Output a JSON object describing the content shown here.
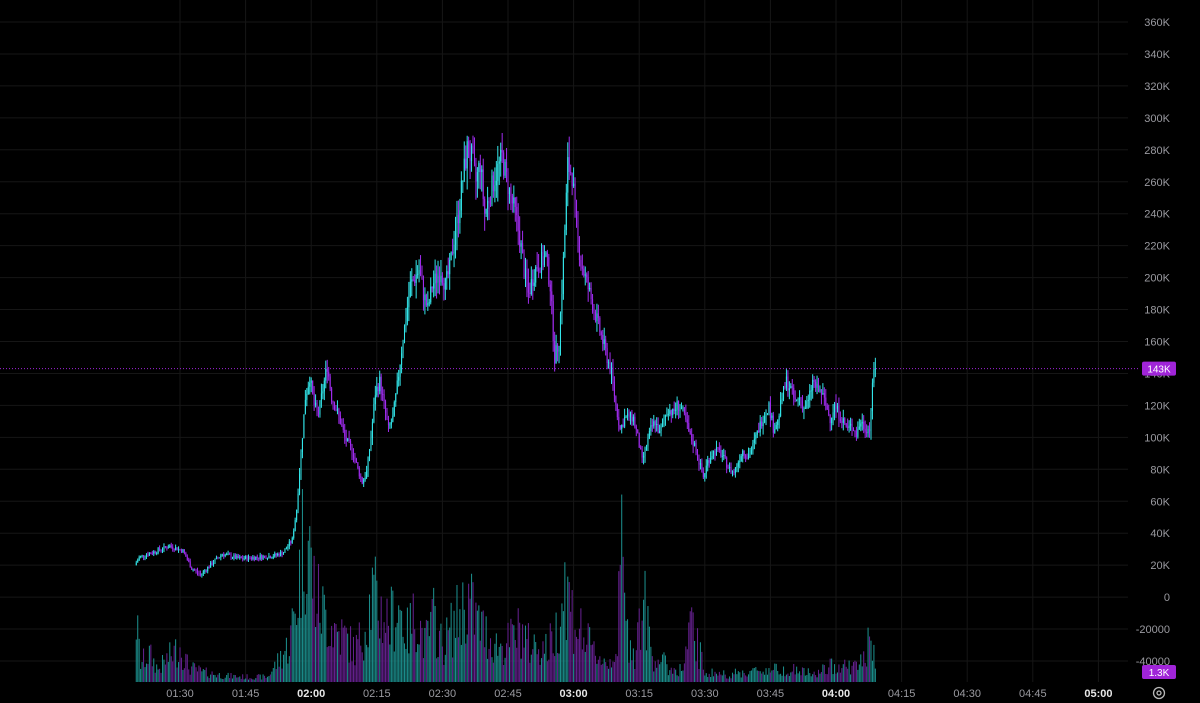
{
  "chart_data": {
    "type": "candlestick",
    "y_axis": {
      "range": [
        -45000,
        365000
      ],
      "tick_labels": [
        "360K",
        "340K",
        "320K",
        "300K",
        "280K",
        "260K",
        "240K",
        "220K",
        "200K",
        "180K",
        "160K",
        "140K",
        "120K",
        "100K",
        "80K",
        "60K",
        "40K",
        "20K",
        "0",
        "-20000",
        "-40000"
      ]
    },
    "x_axis": {
      "range_minutes": [
        79,
        306
      ],
      "tick_labels": [
        {
          "label": "01:30",
          "minute": 90,
          "major": false
        },
        {
          "label": "01:45",
          "minute": 105,
          "major": false
        },
        {
          "label": "02:00",
          "minute": 120,
          "major": true
        },
        {
          "label": "02:15",
          "minute": 135,
          "major": false
        },
        {
          "label": "02:30",
          "minute": 150,
          "major": false
        },
        {
          "label": "02:45",
          "minute": 165,
          "major": false
        },
        {
          "label": "03:00",
          "minute": 180,
          "major": true
        },
        {
          "label": "03:15",
          "minute": 195,
          "major": false
        },
        {
          "label": "03:30",
          "minute": 210,
          "major": false
        },
        {
          "label": "03:45",
          "minute": 225,
          "major": false
        },
        {
          "label": "04:00",
          "minute": 240,
          "major": true
        },
        {
          "label": "04:15",
          "minute": 255,
          "major": false
        },
        {
          "label": "04:30",
          "minute": 270,
          "major": false
        },
        {
          "label": "04:45",
          "minute": 285,
          "major": false
        },
        {
          "label": "05:00",
          "minute": 300,
          "major": true
        }
      ]
    },
    "grid": true,
    "price_keypoints": [
      [
        80,
        20000
      ],
      [
        81,
        25000
      ],
      [
        84,
        28000
      ],
      [
        88,
        32000
      ],
      [
        91,
        29000
      ],
      [
        93,
        18000
      ],
      [
        95,
        14000
      ],
      [
        98,
        22000
      ],
      [
        100,
        27000
      ],
      [
        104,
        24000
      ],
      [
        108,
        25000
      ],
      [
        112,
        26000
      ],
      [
        114,
        28000
      ],
      [
        116,
        36000
      ],
      [
        117,
        55000
      ],
      [
        118,
        90000
      ],
      [
        119,
        125000
      ],
      [
        120,
        138000
      ],
      [
        121,
        120000
      ],
      [
        122,
        115000
      ],
      [
        123,
        130000
      ],
      [
        124,
        145000
      ],
      [
        125,
        125000
      ],
      [
        126,
        118000
      ],
      [
        127,
        110000
      ],
      [
        128,
        100000
      ],
      [
        130,
        90000
      ],
      [
        131,
        80000
      ],
      [
        132,
        72000
      ],
      [
        133,
        78000
      ],
      [
        134,
        100000
      ],
      [
        135,
        128000
      ],
      [
        136,
        135000
      ],
      [
        137,
        120000
      ],
      [
        138,
        105000
      ],
      [
        139,
        112000
      ],
      [
        140,
        132000
      ],
      [
        141,
        155000
      ],
      [
        142,
        175000
      ],
      [
        143,
        195000
      ],
      [
        144,
        200000
      ],
      [
        145,
        205000
      ],
      [
        146,
        190000
      ],
      [
        147,
        180000
      ],
      [
        148,
        195000
      ],
      [
        149,
        200000
      ],
      [
        150,
        205000
      ],
      [
        151,
        195000
      ],
      [
        152,
        205000
      ],
      [
        153,
        225000
      ],
      [
        154,
        240000
      ],
      [
        155,
        262000
      ],
      [
        156,
        280000
      ],
      [
        157,
        275000
      ],
      [
        158,
        260000
      ],
      [
        159,
        272000
      ],
      [
        160,
        240000
      ],
      [
        161,
        250000
      ],
      [
        162,
        260000
      ],
      [
        163,
        268000
      ],
      [
        164,
        275000
      ],
      [
        165,
        262000
      ],
      [
        166,
        250000
      ],
      [
        167,
        240000
      ],
      [
        168,
        225000
      ],
      [
        169,
        205000
      ],
      [
        170,
        190000
      ],
      [
        171,
        200000
      ],
      [
        172,
        208000
      ],
      [
        173,
        210000
      ],
      [
        174,
        213000
      ],
      [
        175,
        195000
      ],
      [
        176,
        150000
      ],
      [
        177,
        160000
      ],
      [
        178,
        210000
      ],
      [
        179,
        270000
      ],
      [
        180,
        265000
      ],
      [
        181,
        230000
      ],
      [
        182,
        210000
      ],
      [
        183,
        200000
      ],
      [
        184,
        190000
      ],
      [
        185,
        180000
      ],
      [
        186,
        170000
      ],
      [
        187,
        160000
      ],
      [
        188,
        150000
      ],
      [
        189,
        140000
      ],
      [
        190,
        120000
      ],
      [
        191,
        105000
      ],
      [
        192,
        112000
      ],
      [
        193,
        113000
      ],
      [
        194,
        112000
      ],
      [
        195,
        100000
      ],
      [
        196,
        85000
      ],
      [
        197,
        95000
      ],
      [
        198,
        105000
      ],
      [
        199,
        110000
      ],
      [
        200,
        102000
      ],
      [
        201,
        112000
      ],
      [
        202,
        118000
      ],
      [
        203,
        115000
      ],
      [
        204,
        120000
      ],
      [
        205,
        118000
      ],
      [
        206,
        110000
      ],
      [
        207,
        100000
      ],
      [
        208,
        95000
      ],
      [
        209,
        85000
      ],
      [
        210,
        75000
      ],
      [
        211,
        85000
      ],
      [
        212,
        90000
      ],
      [
        213,
        92000
      ],
      [
        214,
        90000
      ],
      [
        215,
        85000
      ],
      [
        216,
        80000
      ],
      [
        217,
        78000
      ],
      [
        218,
        85000
      ],
      [
        219,
        92000
      ],
      [
        220,
        88000
      ],
      [
        221,
        92000
      ],
      [
        222,
        100000
      ],
      [
        223,
        108000
      ],
      [
        224,
        115000
      ],
      [
        225,
        120000
      ],
      [
        226,
        106000
      ],
      [
        227,
        110000
      ],
      [
        228,
        125000
      ],
      [
        229,
        135000
      ],
      [
        230,
        130000
      ],
      [
        231,
        122000
      ],
      [
        232,
        125000
      ],
      [
        233,
        118000
      ],
      [
        234,
        122000
      ],
      [
        235,
        135000
      ],
      [
        236,
        130000
      ],
      [
        237,
        128000
      ],
      [
        238,
        120000
      ],
      [
        239,
        112000
      ],
      [
        240,
        120000
      ],
      [
        241,
        115000
      ],
      [
        242,
        110000
      ],
      [
        243,
        105000
      ],
      [
        244,
        108000
      ],
      [
        245,
        102000
      ],
      [
        246,
        110000
      ],
      [
        247,
        106000
      ],
      [
        248,
        105000
      ],
      [
        249,
        143000
      ]
    ],
    "volume_keypoints": [
      [
        80,
        48000
      ],
      [
        81,
        15000
      ],
      [
        83,
        22000
      ],
      [
        85,
        10000
      ],
      [
        87,
        18000
      ],
      [
        90,
        28000
      ],
      [
        92,
        12000
      ],
      [
        95,
        8000
      ],
      [
        100,
        5000
      ],
      [
        105,
        4000
      ],
      [
        110,
        4000
      ],
      [
        115,
        30000
      ],
      [
        117,
        72000
      ],
      [
        118,
        108000
      ],
      [
        119,
        125000
      ],
      [
        120,
        90000
      ],
      [
        121,
        70000
      ],
      [
        122,
        60000
      ],
      [
        124,
        48000
      ],
      [
        126,
        40000
      ],
      [
        128,
        35000
      ],
      [
        130,
        25000
      ],
      [
        132,
        40000
      ],
      [
        134,
        70000
      ],
      [
        136,
        55000
      ],
      [
        138,
        48000
      ],
      [
        140,
        62000
      ],
      [
        142,
        38000
      ],
      [
        144,
        55000
      ],
      [
        146,
        30000
      ],
      [
        148,
        50000
      ],
      [
        150,
        28000
      ],
      [
        152,
        42000
      ],
      [
        154,
        55000
      ],
      [
        156,
        65000
      ],
      [
        158,
        48000
      ],
      [
        160,
        38000
      ],
      [
        162,
        30000
      ],
      [
        164,
        28000
      ],
      [
        166,
        35000
      ],
      [
        168,
        42000
      ],
      [
        170,
        28000
      ],
      [
        172,
        30000
      ],
      [
        174,
        26000
      ],
      [
        176,
        40000
      ],
      [
        178,
        80000
      ],
      [
        180,
        50000
      ],
      [
        182,
        38000
      ],
      [
        184,
        26000
      ],
      [
        186,
        20000
      ],
      [
        188,
        14000
      ],
      [
        190,
        30000
      ],
      [
        191,
        110000
      ],
      [
        192,
        40000
      ],
      [
        194,
        24000
      ],
      [
        196,
        65000
      ],
      [
        198,
        20000
      ],
      [
        200,
        18000
      ],
      [
        202,
        10000
      ],
      [
        205,
        10000
      ],
      [
        207,
        45000
      ],
      [
        210,
        8000
      ],
      [
        215,
        6000
      ],
      [
        220,
        8000
      ],
      [
        225,
        10000
      ],
      [
        230,
        10000
      ],
      [
        235,
        6000
      ],
      [
        240,
        14000
      ],
      [
        245,
        12000
      ],
      [
        248,
        32000
      ],
      [
        249,
        14000
      ]
    ]
  },
  "price_line": {
    "value": 143000,
    "label": "143K"
  },
  "volume_badge": {
    "label": "1.3K"
  },
  "settings": {
    "icon": "settings-gear-icon"
  },
  "colors": {
    "up": "#33e6ea",
    "down": "#a12cf0",
    "vol_up": "#1b8c8a",
    "vol_down": "#63208c",
    "badge": "#a024d8",
    "grid": "#161616"
  }
}
